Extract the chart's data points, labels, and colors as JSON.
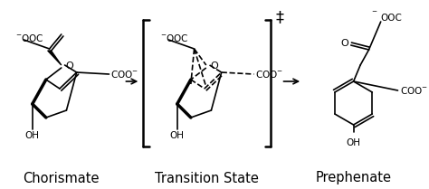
{
  "label_chorismate": "Chorismate",
  "label_ts": "Transition State",
  "label_prephenate": "Prephenate",
  "bg_color": "#ffffff",
  "fg_color": "#000000",
  "font_size_labels": 10.5,
  "fig_width": 4.74,
  "fig_height": 2.09,
  "dpi": 100
}
